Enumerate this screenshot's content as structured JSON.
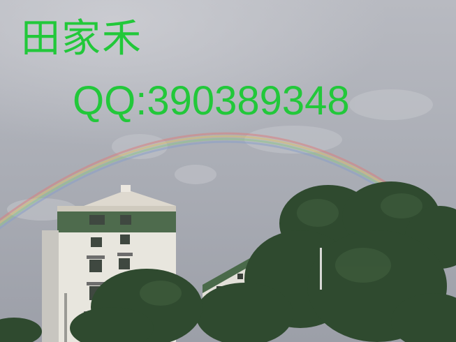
{
  "watermark": {
    "name": "田家禾",
    "contact": "QQ:390389348",
    "color": "#22c83a"
  },
  "scene": {
    "sky_color": "#aeb0b8",
    "facade_color": "#e8e6de",
    "trim_color": "#4f6a4e",
    "foliage_color": "#2f4a2f"
  }
}
